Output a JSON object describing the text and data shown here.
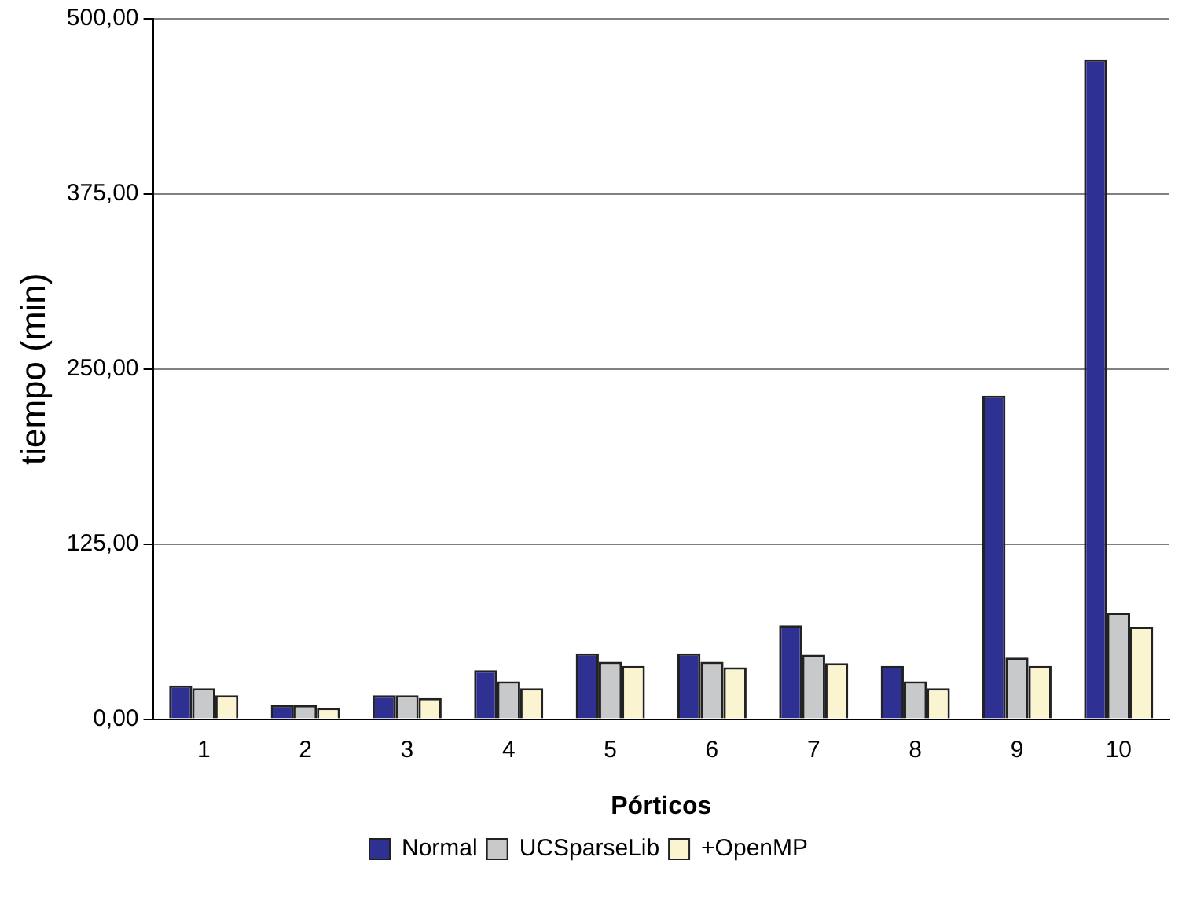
{
  "chart_data": {
    "type": "bar",
    "xlabel": "Pórticos",
    "ylabel": "tiempo (min)",
    "categories": [
      "1",
      "2",
      "3",
      "4",
      "5",
      "6",
      "7",
      "8",
      "9",
      "10"
    ],
    "series": [
      {
        "name": "Normal",
        "color": "#2e3192",
        "values": [
          24,
          10,
          17,
          35,
          47,
          47,
          67,
          38,
          231,
          471
        ]
      },
      {
        "name": "UCSparseLib",
        "color": "#c8c9cb",
        "values": [
          22,
          10,
          17,
          27,
          41,
          41,
          46,
          27,
          44,
          76
        ]
      },
      {
        "name": "+OpenMP",
        "color": "#faf5d0",
        "values": [
          17,
          8,
          15,
          22,
          38,
          37,
          40,
          22,
          38,
          66
        ]
      }
    ],
    "ylim": [
      0,
      500
    ],
    "yticks": [
      {
        "value": 0,
        "label": "0,00"
      },
      {
        "value": 125,
        "label": "125,00"
      },
      {
        "value": 250,
        "label": "250,00"
      },
      {
        "value": 375,
        "label": "375,00"
      },
      {
        "value": 500,
        "label": "500,00"
      }
    ],
    "grid": "y",
    "legend": "bottom"
  }
}
